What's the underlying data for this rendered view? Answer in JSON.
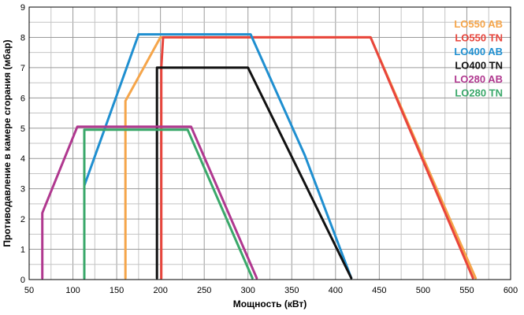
{
  "chart_data": {
    "type": "line",
    "title": "",
    "xlabel": "Мощность  (кВт)",
    "ylabel": "Противодавление в камере сгорания  (мбар)",
    "xlim": [
      50,
      600
    ],
    "ylim": [
      0,
      9
    ],
    "x_ticks": [
      "50",
      "100",
      "150",
      "200",
      "250",
      "300",
      "350",
      "400",
      "450",
      "500",
      "550",
      "600"
    ],
    "y_ticks": [
      "0",
      "1",
      "2",
      "3",
      "4",
      "5",
      "6",
      "7",
      "8",
      "9"
    ],
    "grid": true,
    "legend_position": "top-right",
    "series": [
      {
        "name": "LO550 AB",
        "color": "#f5a54a",
        "x": [
          160,
          160,
          200,
          440,
          560
        ],
        "y": [
          0.05,
          5.9,
          8.0,
          8.0,
          0.05
        ]
      },
      {
        "name": "LO550 TN",
        "color": "#e8453c",
        "x": [
          201,
          201,
          203,
          440,
          557
        ],
        "y": [
          0.05,
          7.0,
          8.0,
          8.0,
          0.05
        ]
      },
      {
        "name": "LO400 AB",
        "color": "#1f8fd0",
        "x": [
          113,
          113,
          175,
          303,
          365,
          418
        ],
        "y": [
          0.05,
          3.1,
          8.1,
          8.1,
          4.1,
          0.05
        ]
      },
      {
        "name": "LO400 TN",
        "color": "#111111",
        "x": [
          196,
          196,
          300,
          418
        ],
        "y": [
          0.05,
          7.0,
          7.0,
          0.05
        ]
      },
      {
        "name": "LO280 AB",
        "color": "#b0388f",
        "x": [
          65,
          65,
          105,
          235,
          310
        ],
        "y": [
          0.05,
          2.2,
          5.05,
          5.05,
          0.05
        ]
      },
      {
        "name": "LO280 TN",
        "color": "#3aa86a",
        "x": [
          113,
          113,
          231,
          305
        ],
        "y": [
          0.05,
          4.95,
          4.95,
          0.05
        ]
      }
    ]
  }
}
